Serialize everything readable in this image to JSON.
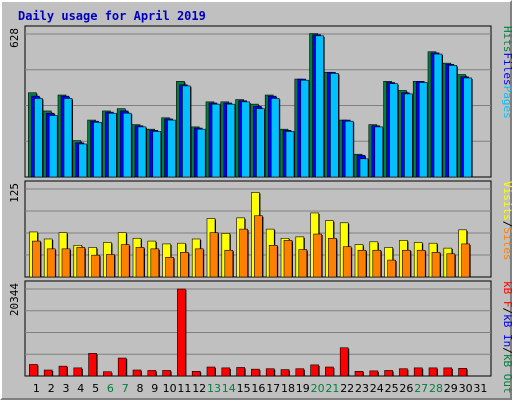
{
  "title": "Daily usage for April 2019",
  "chart_data": [
    {
      "type": "bar",
      "panel": "top",
      "categories": [
        "1",
        "2",
        "3",
        "4",
        "5",
        "6",
        "7",
        "8",
        "9",
        "10",
        "11",
        "12",
        "13",
        "14",
        "15",
        "16",
        "17",
        "18",
        "19",
        "20",
        "21",
        "22",
        "23",
        "24",
        "25",
        "26",
        "27",
        "28",
        "29",
        "30",
        "31"
      ],
      "max_label": "628",
      "ylim": [
        0,
        628
      ],
      "grid": true,
      "series": [
        {
          "name": "Hits",
          "color": "#008040",
          "values": [
            370,
            290,
            360,
            160,
            250,
            290,
            300,
            230,
            210,
            260,
            420,
            220,
            330,
            330,
            340,
            320,
            360,
            210,
            430,
            630,
            460,
            250,
            100,
            230,
            420,
            380,
            420,
            550,
            500,
            450,
            null
          ]
        },
        {
          "name": "Files",
          "color": "#0000ff",
          "values": [
            355,
            280,
            355,
            150,
            245,
            285,
            290,
            225,
            205,
            255,
            405,
            215,
            325,
            325,
            335,
            310,
            355,
            205,
            430,
            625,
            460,
            250,
            95,
            225,
            415,
            370,
            420,
            545,
            495,
            440,
            null
          ]
        },
        {
          "name": "Pages",
          "color": "#00c0ff",
          "values": [
            345,
            270,
            345,
            145,
            240,
            280,
            280,
            220,
            200,
            250,
            400,
            210,
            320,
            320,
            330,
            300,
            345,
            200,
            425,
            620,
            455,
            245,
            80,
            220,
            410,
            365,
            415,
            540,
            490,
            435,
            null
          ]
        }
      ],
      "axis_legend": [
        {
          "text": "Hits",
          "color": "#008040"
        },
        {
          "text": "Files",
          "color": "#0000ff"
        },
        {
          "text": "Pages",
          "color": "#00c0ff"
        }
      ]
    },
    {
      "type": "bar",
      "panel": "middle",
      "categories": [
        "1",
        "2",
        "3",
        "4",
        "5",
        "6",
        "7",
        "8",
        "9",
        "10",
        "11",
        "12",
        "13",
        "14",
        "15",
        "16",
        "17",
        "18",
        "19",
        "20",
        "21",
        "22",
        "23",
        "24",
        "25",
        "26",
        "27",
        "28",
        "29",
        "30",
        "31"
      ],
      "max_label": "125",
      "ylim": [
        0,
        125
      ],
      "grid": true,
      "series": [
        {
          "name": "Visits",
          "color": "#ffff00",
          "values": [
            64,
            54,
            63,
            45,
            42,
            49,
            63,
            55,
            51,
            47,
            48,
            54,
            83,
            62,
            84,
            120,
            68,
            55,
            57,
            91,
            80,
            77,
            46,
            50,
            42,
            52,
            49,
            48,
            41,
            67,
            null
          ]
        },
        {
          "name": "Sites",
          "color": "#ff8000",
          "values": [
            51,
            40,
            40,
            42,
            31,
            32,
            46,
            42,
            40,
            28,
            35,
            40,
            63,
            38,
            68,
            87,
            45,
            52,
            39,
            61,
            55,
            43,
            38,
            38,
            24,
            38,
            38,
            35,
            33,
            47,
            null
          ]
        }
      ],
      "axis_legend": [
        {
          "text": "Visits",
          "color": "#ffff00"
        },
        {
          "text": "/",
          "color": "#000000"
        },
        {
          "text": "Sites",
          "color": "#ff8000"
        }
      ]
    },
    {
      "type": "bar",
      "panel": "bottom",
      "categories": [
        "1",
        "2",
        "3",
        "4",
        "5",
        "6",
        "7",
        "8",
        "9",
        "10",
        "11",
        "12",
        "13",
        "14",
        "15",
        "16",
        "17",
        "18",
        "19",
        "20",
        "21",
        "22",
        "23",
        "24",
        "25",
        "26",
        "27",
        "28",
        "29",
        "30",
        "31"
      ],
      "max_label": "20344",
      "ylim": [
        0,
        20344
      ],
      "grid": true,
      "series": [
        {
          "name": "kB F",
          "color": "#ff0000",
          "values": [
            2700,
            1400,
            2300,
            1900,
            5300,
            1000,
            4200,
            1400,
            1300,
            1300,
            20344,
            1100,
            2100,
            1900,
            2000,
            1600,
            1700,
            1500,
            1700,
            2600,
            2100,
            6600,
            1100,
            1200,
            1300,
            1700,
            1900,
            1900,
            1900,
            1800,
            null
          ]
        }
      ],
      "axis_legend": [
        {
          "text": "kB F",
          "color": "#ff0000"
        },
        {
          "text": "/",
          "color": "#000000"
        },
        {
          "text": "kB In",
          "color": "#0000ff"
        },
        {
          "text": "/",
          "color": "#000000"
        },
        {
          "text": "kB Out",
          "color": "#008040"
        }
      ]
    }
  ],
  "weekend_days": [
    "6",
    "7",
    "13",
    "14",
    "20",
    "21",
    "27",
    "28"
  ],
  "weekend_color": "#008040"
}
